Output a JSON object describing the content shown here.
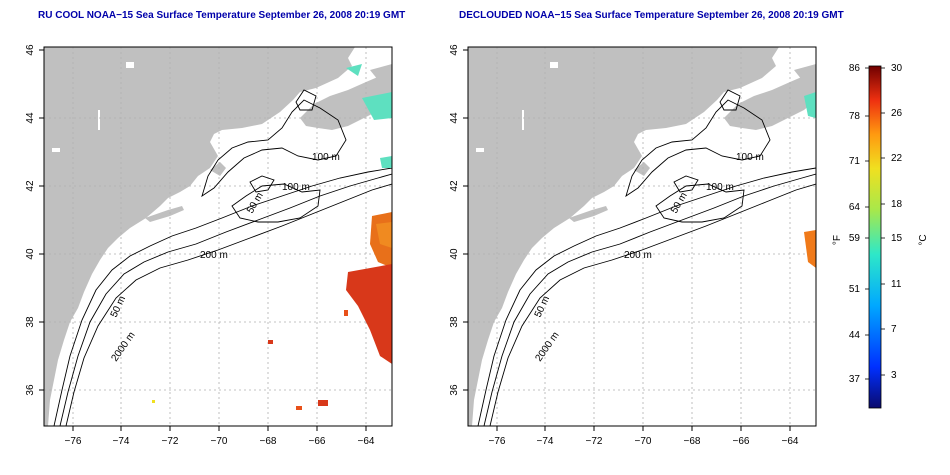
{
  "titles": {
    "left": "RU COOL NOAA−15 Sea Surface Temperature September 26, 2008 20:19 GMT",
    "right": "DECLOUDED NOAA−15 Sea Surface Temperature September 26, 2008 20:19 GMT"
  },
  "axes": {
    "x_ticks": [
      "−76",
      "−74",
      "−72",
      "−70",
      "−68",
      "−66",
      "−64"
    ],
    "y_ticks": [
      "46",
      "44",
      "42",
      "40",
      "38",
      "36"
    ]
  },
  "contour_labels": [
    "100 m",
    "100 m",
    "50 m",
    "200 m",
    "50 m",
    "2000 m"
  ],
  "legend": {
    "unit_f": "°F",
    "unit_c": "°C",
    "f_ticks": [
      "86",
      "78",
      "71",
      "64",
      "59",
      "51",
      "44",
      "37"
    ],
    "c_ticks": [
      "30",
      "26",
      "22",
      "18",
      "15",
      "11",
      "7",
      "3"
    ]
  },
  "colors": {
    "land": "#c0c0c0",
    "ocean": "#ffffff",
    "contour": "#000000",
    "grid": "#b0b0b0",
    "title": "#0000aa",
    "warm_sst": "#e8501a",
    "cool_sst": "#5ee0c0"
  }
}
